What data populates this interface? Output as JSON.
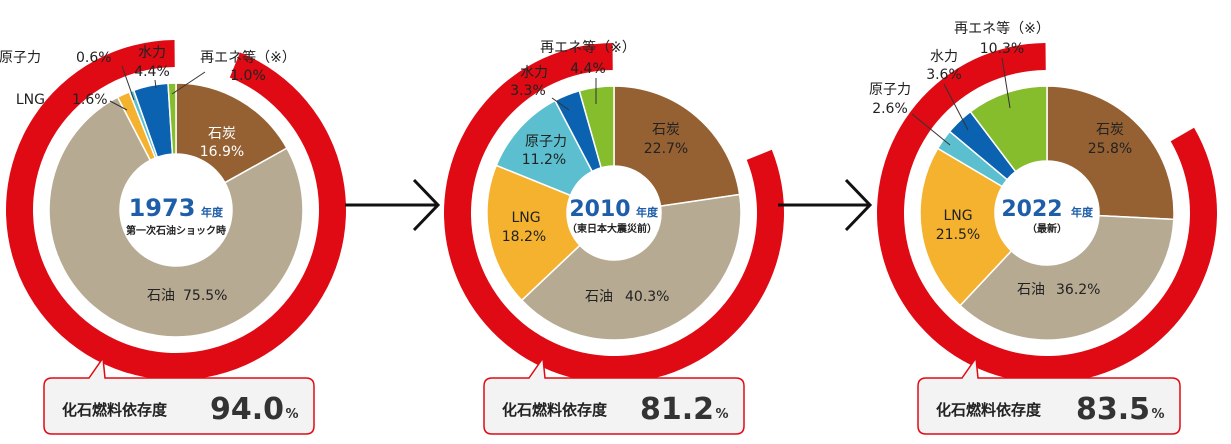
{
  "colors": {
    "fossil_ring": "#df0a14",
    "coal": "#956133",
    "oil": "#b7aa93",
    "lng": "#f5b22f",
    "nuclear": "#5bbfcf",
    "hydro": "#0a62b0",
    "renewables": "#86bd2c",
    "year_text": "#1e5ea9",
    "badge_border": "#df0a14",
    "badge_bg": "#f3f3f3",
    "arrow": "#111111"
  },
  "chart_data": [
    {
      "type": "pie",
      "year": "1973",
      "year_suffix": "年度",
      "subtitle": "第一次石油ショック時",
      "fossil_label": "化石燃料依存度",
      "fossil_value": "94.0",
      "fossil_unit": "%",
      "slices": [
        {
          "key": "coal",
          "label": "石炭",
          "value": 16.9,
          "display": "16.9%"
        },
        {
          "key": "oil",
          "label": "石油",
          "value": 75.5,
          "display": "75.5%"
        },
        {
          "key": "lng",
          "label": "LNG",
          "value": 1.6,
          "display": "1.6%"
        },
        {
          "key": "nuclear",
          "label": "原子力",
          "value": 0.6,
          "display": "0.6%"
        },
        {
          "key": "hydro",
          "label": "水力",
          "value": 4.4,
          "display": "4.4%"
        },
        {
          "key": "renewables",
          "label": "再エネ等（※）",
          "value": 1.0,
          "display": "1.0%"
        }
      ]
    },
    {
      "type": "pie",
      "year": "2010",
      "year_suffix": "年度",
      "subtitle": "（東日本大震災前）",
      "fossil_label": "化石燃料依存度",
      "fossil_value": "81.2",
      "fossil_unit": "%",
      "slices": [
        {
          "key": "coal",
          "label": "石炭",
          "value": 22.7,
          "display": "22.7%"
        },
        {
          "key": "oil",
          "label": "石油",
          "value": 40.3,
          "display": "40.3%"
        },
        {
          "key": "lng",
          "label": "LNG",
          "value": 18.2,
          "display": "18.2%"
        },
        {
          "key": "nuclear",
          "label": "原子力",
          "value": 11.2,
          "display": "11.2%"
        },
        {
          "key": "hydro",
          "label": "水力",
          "value": 3.3,
          "display": "3.3%"
        },
        {
          "key": "renewables",
          "label": "再エネ等（※）",
          "value": 4.4,
          "display": "4.4%"
        }
      ]
    },
    {
      "type": "pie",
      "year": "2022",
      "year_suffix": "年度",
      "subtitle": "（最新）",
      "fossil_label": "化石燃料依存度",
      "fossil_value": "83.5",
      "fossil_unit": "%",
      "slices": [
        {
          "key": "coal",
          "label": "石炭",
          "value": 25.8,
          "display": "25.8%"
        },
        {
          "key": "oil",
          "label": "石油",
          "value": 36.2,
          "display": "36.2%"
        },
        {
          "key": "lng",
          "label": "LNG",
          "value": 21.5,
          "display": "21.5%"
        },
        {
          "key": "nuclear",
          "label": "原子力",
          "value": 2.6,
          "display": "2.6%"
        },
        {
          "key": "hydro",
          "label": "水力",
          "value": 3.6,
          "display": "3.6%"
        },
        {
          "key": "renewables",
          "label": "再エネ等（※）",
          "value": 10.3,
          "display": "10.3%"
        }
      ]
    }
  ]
}
